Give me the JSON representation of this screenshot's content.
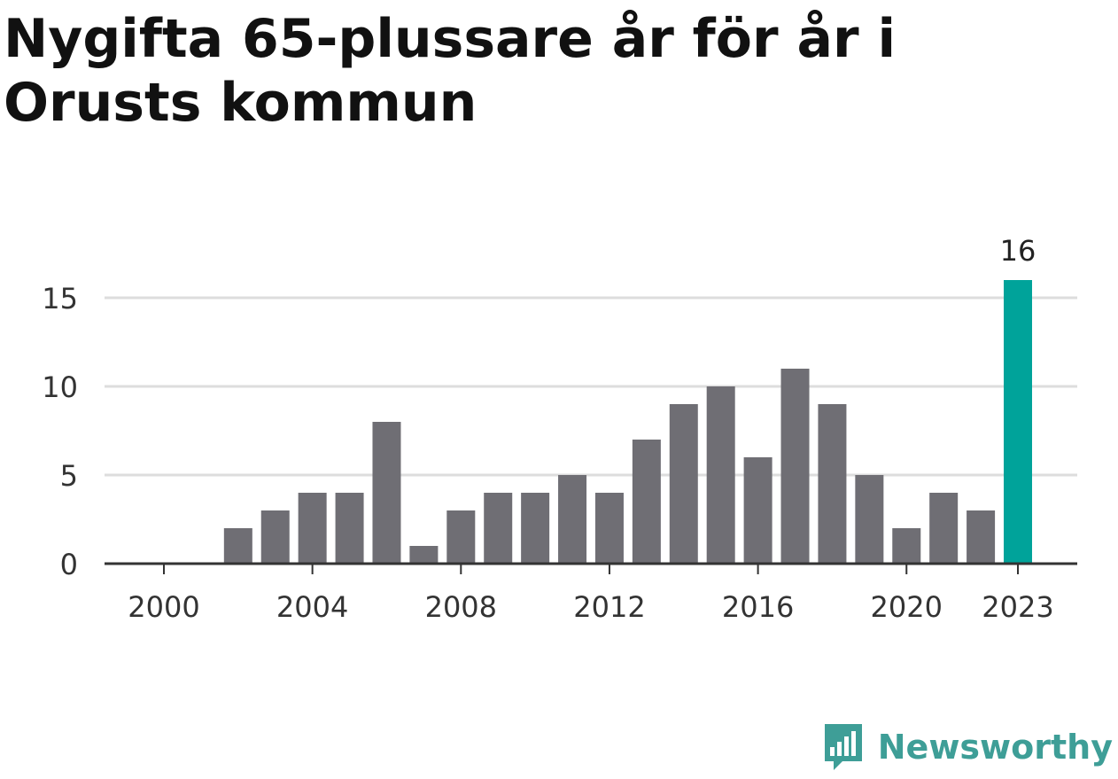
{
  "title": "Nygifta 65-plussare år för år i Orusts kommun",
  "brand": {
    "name": "Newsworthy",
    "icon": "bar-chart-speech-bubble-icon",
    "color": "#3e9e97"
  },
  "chart_data": {
    "type": "bar",
    "title": "Nygifta 65-plussare år för år i Orusts kommun",
    "xlabel": "",
    "ylabel": "",
    "categories": [
      2000,
      2001,
      2002,
      2003,
      2004,
      2005,
      2006,
      2007,
      2008,
      2009,
      2010,
      2011,
      2012,
      2013,
      2014,
      2015,
      2016,
      2017,
      2018,
      2019,
      2020,
      2021,
      2022,
      2023
    ],
    "values": [
      0,
      0,
      2,
      3,
      4,
      4,
      8,
      1,
      3,
      4,
      4,
      5,
      4,
      7,
      9,
      10,
      6,
      11,
      9,
      5,
      2,
      4,
      3,
      16
    ],
    "ylim": [
      0,
      16
    ],
    "y_ticks": [
      0,
      5,
      10,
      15
    ],
    "x_ticks": [
      2000,
      2004,
      2008,
      2012,
      2016,
      2020,
      2023
    ],
    "grid": "horizontal",
    "highlight": {
      "category": 2023,
      "label": "16"
    },
    "colors": {
      "bar": "#6f6e74",
      "highlight": "#00a39a",
      "grid": "#dddddd",
      "axis": "#333333"
    }
  }
}
